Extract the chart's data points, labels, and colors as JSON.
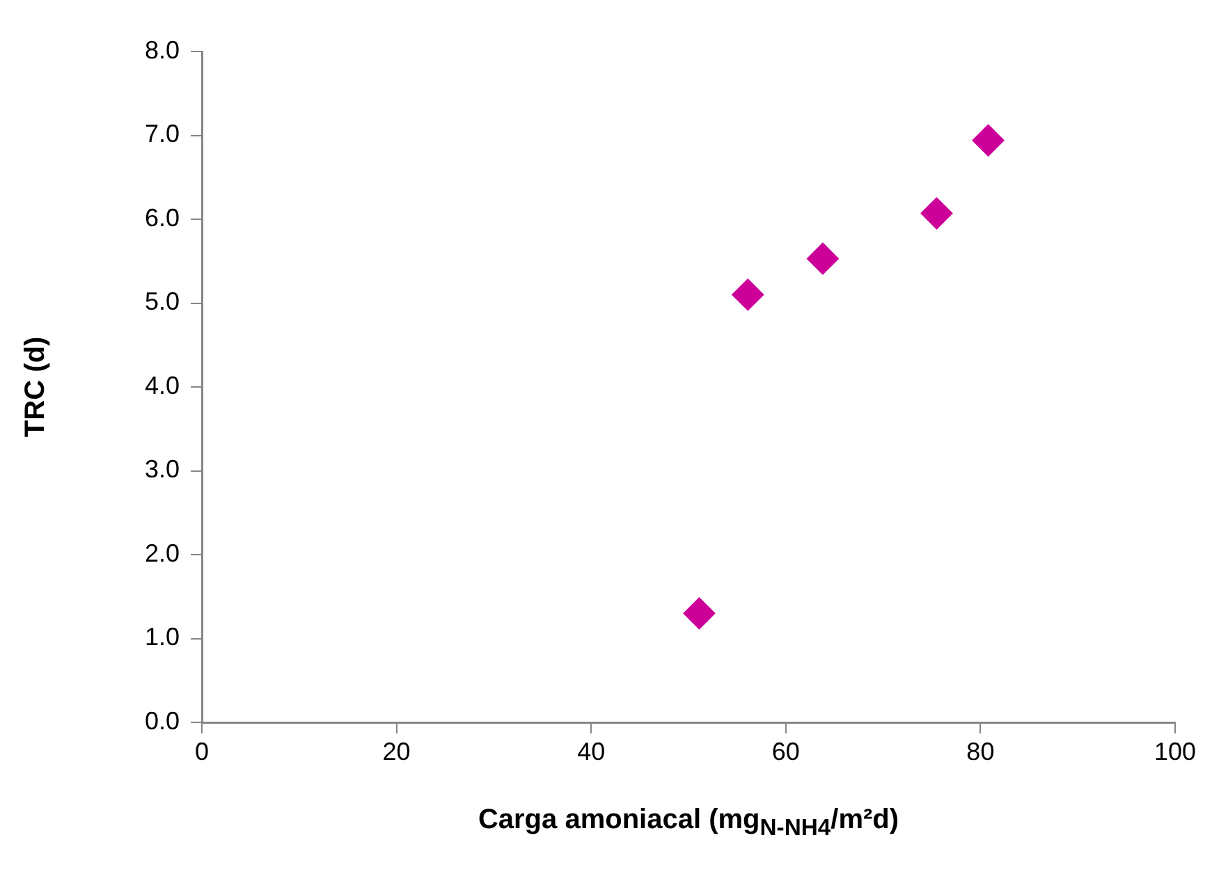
{
  "chart_data": {
    "type": "scatter",
    "xlabel": "Carga amoniacal (mg$_{N-NH4}$/m²d)",
    "ylabel": "TRC (d)",
    "series": [
      {
        "color": "#cc0099",
        "x": [
          51.1,
          56.1,
          63.8,
          75.5,
          80.8
        ],
        "values": [
          1.3,
          5.1,
          5.53,
          6.07,
          6.94
        ]
      }
    ],
    "xlim": [
      0,
      100
    ],
    "xticks": [
      0,
      20,
      40,
      60,
      80,
      100
    ],
    "ylim": [
      0,
      8
    ],
    "yticks": [
      {
        "value": 0,
        "label": "0.0"
      },
      {
        "value": 1,
        "label": "1.0"
      },
      {
        "value": 2,
        "label": "2.0"
      },
      {
        "value": 3,
        "label": "3.0"
      },
      {
        "value": 4,
        "label": "4.0"
      },
      {
        "value": 5,
        "label": "5.0"
      },
      {
        "value": 6,
        "label": "6.0"
      },
      {
        "value": 7,
        "label": "7.0"
      },
      {
        "value": 8,
        "label": "8.0"
      }
    ],
    "grid": false,
    "legend": false,
    "marker": "diamond"
  }
}
